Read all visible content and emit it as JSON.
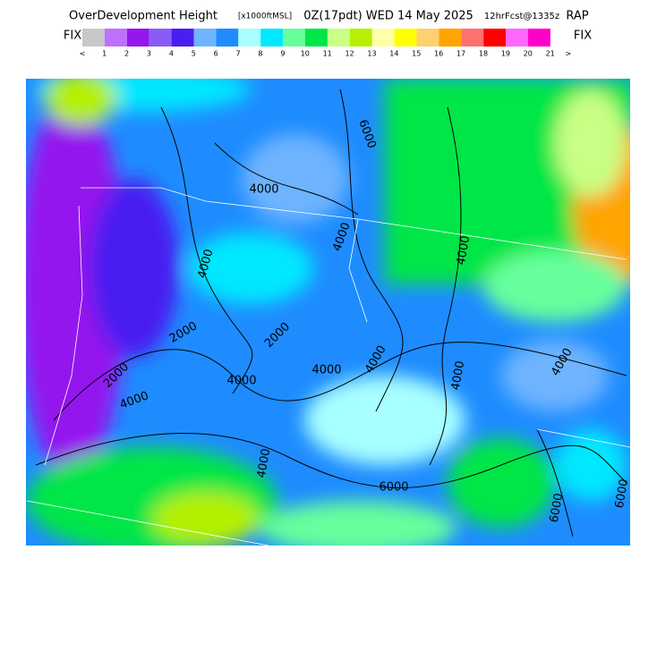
{
  "header": {
    "title": "OverDevelopment Height",
    "units": "[x1000ftMSL]",
    "valid": "0Z(17pdt) WED 14 May 2025",
    "forecast": "12hrFcst@1335z",
    "model": "RAP"
  },
  "legend": {
    "left": "FIX",
    "right": "FIX",
    "colors": [
      "#c8c8c8",
      "#c070ff",
      "#9418ee",
      "#8a5cf6",
      "#4a1ef0",
      "#6eb4ff",
      "#1e8cff",
      "#a8ffff",
      "#00e8ff",
      "#66ff9c",
      "#00e646",
      "#c8ff84",
      "#b4f000",
      "#ffffa8",
      "#ffff00",
      "#ffd070",
      "#ffa400",
      "#ff7070",
      "#ff0000",
      "#ff66ff",
      "#ff00c8"
    ],
    "ticks": [
      "<",
      "1",
      "2",
      "3",
      "4",
      "5",
      "6",
      "7",
      "8",
      "9",
      "10",
      "11",
      "12",
      "13",
      "14",
      "15",
      "16",
      "17",
      "18",
      "19",
      "20",
      "21",
      ">"
    ]
  },
  "map": {
    "contour_labels": [
      "6000",
      "4000",
      "4000",
      "4000",
      "4000",
      "2000",
      "2000",
      "2000",
      "4000",
      "4000",
      "4000",
      "4000",
      "4000",
      "4000",
      "4000",
      "6000",
      "6000",
      "6000"
    ]
  }
}
